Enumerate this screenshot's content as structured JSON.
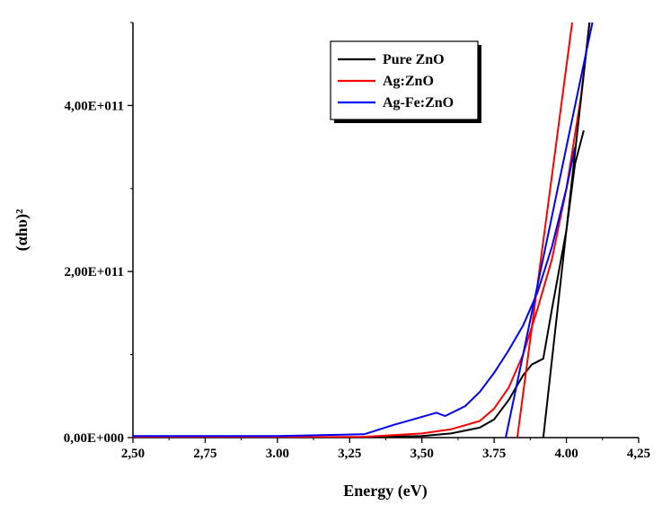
{
  "chart_data": {
    "type": "line",
    "title": "",
    "xlabel": "Energy (eV)",
    "ylabel": "(αhυ)²",
    "xlim": [
      2.5,
      4.25
    ],
    "ylim": [
      0,
      500000000000.0
    ],
    "x_ticks": [
      {
        "value": 2.5,
        "label": "2,50"
      },
      {
        "value": 2.75,
        "label": "2,75"
      },
      {
        "value": 3.0,
        "label": "3.00"
      },
      {
        "value": 3.25,
        "label": "3,25"
      },
      {
        "value": 3.5,
        "label": "3,50"
      },
      {
        "value": 3.75,
        "label": "3.75"
      },
      {
        "value": 4.0,
        "label": "4.00"
      },
      {
        "value": 4.25,
        "label": "4,25"
      }
    ],
    "y_ticks": [
      {
        "value": 0,
        "label": "0,00E+000"
      },
      {
        "value": 200000000000.0,
        "label": "2,00E+011"
      },
      {
        "value": 400000000000.0,
        "label": "4,00E+011"
      }
    ],
    "legend_position": "top-right",
    "series": [
      {
        "name": "Pure ZnO",
        "color": "#000000",
        "x": [
          2.5,
          3.0,
          3.3,
          3.5,
          3.6,
          3.7,
          3.75,
          3.8,
          3.85,
          3.88,
          3.92,
          3.95,
          4.0,
          4.03,
          4.06
        ],
        "y": [
          300000000.0,
          300000000.0,
          500000000.0,
          2000000000.0,
          5000000000.0,
          12000000000.0,
          22000000000.0,
          45000000000.0,
          75000000000.0,
          88000000000.0,
          95000000000.0,
          155000000000.0,
          250000000000.0,
          330000000000.0,
          370000000000.0
        ]
      },
      {
        "name": "Ag:ZnO",
        "color": "#ff0000",
        "x": [
          2.5,
          3.0,
          3.3,
          3.5,
          3.6,
          3.7,
          3.75,
          3.8,
          3.85,
          3.9,
          3.95,
          4.0,
          4.05,
          4.08
        ],
        "y": [
          500000000.0,
          500000000.0,
          1000000000.0,
          5000000000.0,
          10000000000.0,
          20000000000.0,
          35000000000.0,
          60000000000.0,
          100000000000.0,
          155000000000.0,
          215000000000.0,
          300000000000.0,
          410000000000.0,
          500000000000.0
        ]
      },
      {
        "name": "Ag-Fe:ZnO",
        "color": "#0000ff",
        "x": [
          2.5,
          3.0,
          3.3,
          3.4,
          3.5,
          3.55,
          3.58,
          3.65,
          3.7,
          3.75,
          3.8,
          3.85,
          3.9,
          3.95,
          4.0,
          4.03
        ],
        "y": [
          2000000000.0,
          2000000000.0,
          4000000000.0,
          15000000000.0,
          25000000000.0,
          30000000000.0,
          26000000000.0,
          38000000000.0,
          55000000000.0,
          78000000000.0,
          105000000000.0,
          135000000000.0,
          175000000000.0,
          230000000000.0,
          300000000000.0,
          350000000000.0
        ]
      }
    ],
    "tangent_lines": [
      {
        "color": "#000000",
        "x": [
          3.92,
          4.08
        ],
        "y": [
          0,
          500000000000.0
        ]
      },
      {
        "color": "#ff0000",
        "x": [
          3.83,
          4.02
        ],
        "y": [
          0,
          500000000000.0
        ]
      },
      {
        "color": "#0000ff",
        "x": [
          3.79,
          4.09
        ],
        "y": [
          0,
          500000000000.0
        ]
      }
    ]
  }
}
